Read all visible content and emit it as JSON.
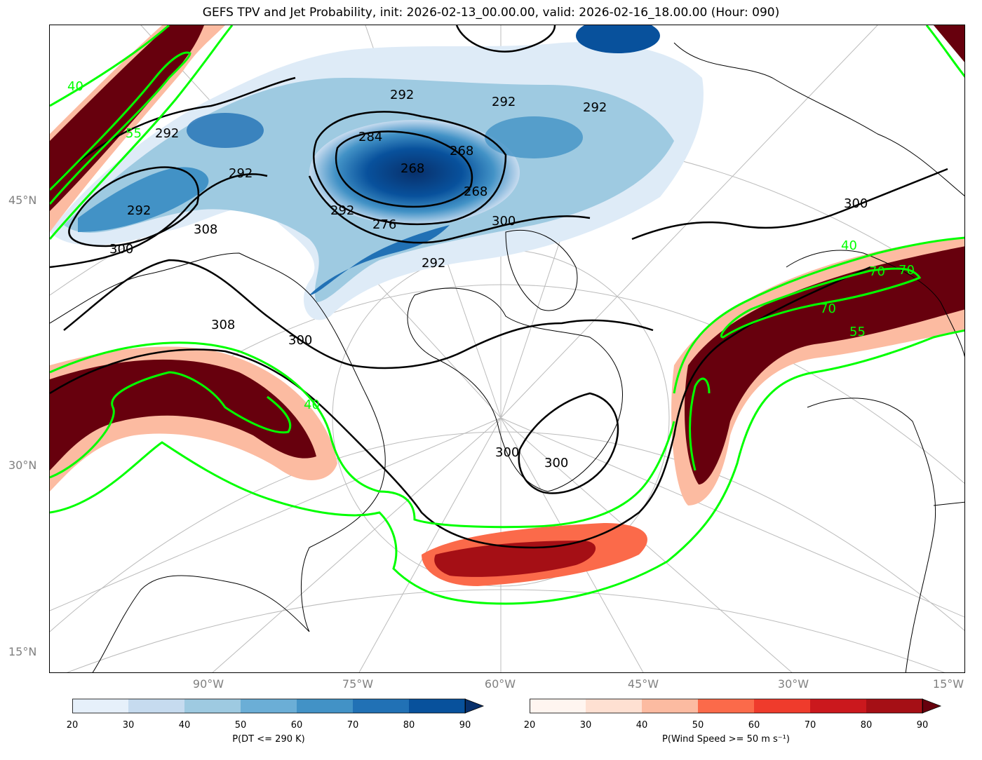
{
  "title": "GEFS TPV and Jet Probability, init: 2026-02-13_00.00.00, valid: 2026-02-16_18.00.00 (Hour: 090)",
  "lat_labels": [
    "45°N",
    "30°N",
    "15°N"
  ],
  "lon_labels": [
    "90°W",
    "75°W",
    "60°W",
    "45°W",
    "30°W",
    "15°W"
  ],
  "contour_labels": {
    "theta": [
      "292",
      "292",
      "292",
      "292",
      "292",
      "292",
      "284",
      "268",
      "268",
      "268",
      "276",
      "292",
      "300",
      "300",
      "300",
      "308",
      "300",
      "300",
      "300",
      "308",
      "292"
    ],
    "jet": [
      "40",
      "55",
      "40",
      "40",
      "70",
      "70",
      "55",
      "70"
    ]
  },
  "colorbar_left": {
    "label": "P(DT <= 290 K)",
    "ticks": [
      "20",
      "30",
      "40",
      "50",
      "60",
      "70",
      "80",
      "90"
    ],
    "colors": [
      "#e6f0fa",
      "#c6dbef",
      "#9ecae1",
      "#6baed6",
      "#4292c6",
      "#2171b5",
      "#08519c",
      "#08306b"
    ]
  },
  "colorbar_right": {
    "label": "P(Wind Speed >= 50 m s⁻¹)",
    "ticks": [
      "20",
      "30",
      "40",
      "50",
      "60",
      "70",
      "80",
      "90"
    ],
    "colors": [
      "#fff5f0",
      "#fee0d2",
      "#fcbba1",
      "#fb6a4a",
      "#ef3b2c",
      "#cb181d",
      "#a50f15",
      "#67000d"
    ]
  },
  "colors": {
    "jet_contour": "#00ff00",
    "theta_contour": "#000000",
    "graticule": "#bbbbbb"
  }
}
